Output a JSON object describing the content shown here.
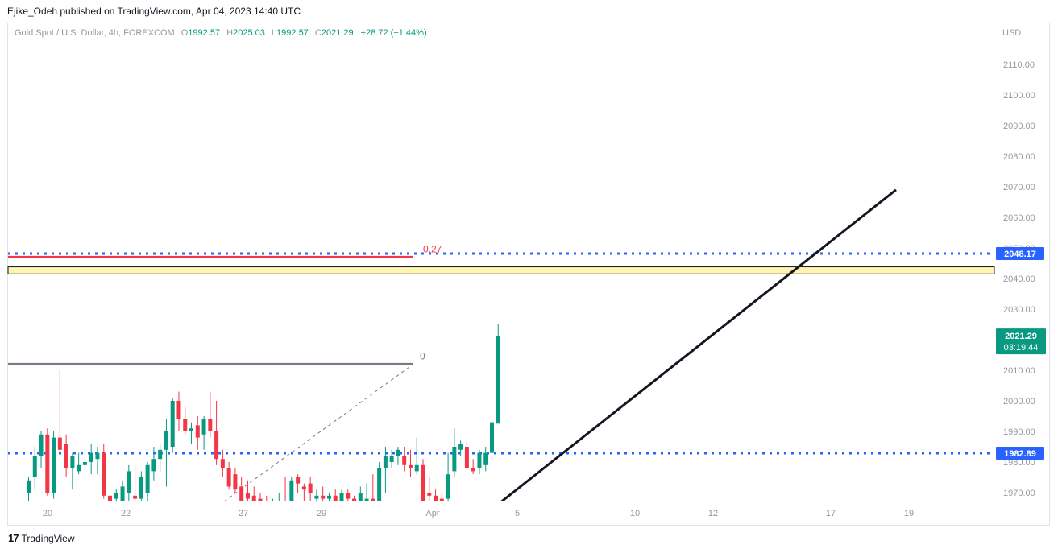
{
  "header": {
    "published_by": "Ejike_Odeh published on TradingView.com, Apr 04, 2023 14:40 UTC"
  },
  "legend": {
    "symbol": "Gold Spot / U.S. Dollar, 4h, FOREXCOM",
    "o_label": "O",
    "o_value": "1992.57",
    "h_label": "H",
    "h_value": "2025.03",
    "l_label": "L",
    "l_value": "1992.57",
    "c_label": "C",
    "c_value": "2021.29",
    "change": "+28.72 (+1.44%)"
  },
  "price_axis": {
    "currency": "USD"
  },
  "footer": {
    "brand": "TradingView",
    "logo_icon": "tradingview-logo-icon"
  },
  "colors": {
    "up": "#089981",
    "down": "#f23645",
    "level_blue": "#2962ff",
    "fib_red": "#f23645",
    "zone_fill": "#fff3b0",
    "trendline": "#131722",
    "badge_green": "#089981"
  },
  "chart_data": {
    "type": "candlestick",
    "title": "Gold Spot / U.S. Dollar, 4h, FOREXCOM",
    "ylabel": "USD",
    "ylim": [
      1967,
      2122
    ],
    "y_ticks": [
      1970,
      1980,
      1990,
      2000,
      2010,
      2020,
      2030,
      2040,
      2050,
      2060,
      2070,
      2080,
      2090,
      2100,
      2110
    ],
    "x_ticks": [
      "20",
      "22",
      "27",
      "29",
      "Apr",
      "5",
      "10",
      "12",
      "17",
      "19"
    ],
    "horizontal_levels": [
      {
        "price": 2048.17,
        "label": "2048.17",
        "style": "dotted",
        "color": "#2962ff"
      },
      {
        "price": 1982.89,
        "label": "1982.89",
        "style": "dotted",
        "color": "#2962ff"
      }
    ],
    "current_price": {
      "price": 2021.29,
      "label": "2021.29",
      "countdown": "03:19:44"
    },
    "fib_levels": [
      {
        "ratio_label": "-0.27",
        "price": 2047
      },
      {
        "ratio_label": "0",
        "price": 2012
      }
    ],
    "zone": {
      "from": 2041.5,
      "to": 2043.8
    },
    "trendline": {
      "from": {
        "x": "Apr 4 (22:00)",
        "y": 1967
      },
      "to": {
        "x": "Apr 18",
        "y": 2069
      }
    },
    "candles": [
      {
        "o": 1970,
        "h": 1975,
        "l": 1967,
        "c": 1974
      },
      {
        "o": 1975,
        "h": 1985,
        "l": 1971,
        "c": 1982
      },
      {
        "o": 1982,
        "h": 1990,
        "l": 1978,
        "c": 1989
      },
      {
        "o": 1989,
        "h": 1991,
        "l": 1969,
        "c": 1970
      },
      {
        "o": 1970,
        "h": 1990,
        "l": 1968,
        "c": 1988
      },
      {
        "o": 1988,
        "h": 2010,
        "l": 1983,
        "c": 1984
      },
      {
        "o": 1986,
        "h": 1989,
        "l": 1975,
        "c": 1978
      },
      {
        "o": 1978,
        "h": 1983,
        "l": 1971,
        "c": 1982
      },
      {
        "o": 1977,
        "h": 1983,
        "l": 1976,
        "c": 1979
      },
      {
        "o": 1979,
        "h": 1985,
        "l": 1977,
        "c": 1980
      },
      {
        "o": 1980,
        "h": 1986,
        "l": 1976,
        "c": 1983
      },
      {
        "o": 1981,
        "h": 1985,
        "l": 1976,
        "c": 1983
      },
      {
        "o": 1983,
        "h": 1986,
        "l": 1968,
        "c": 1969
      },
      {
        "o": 1969,
        "h": 1971,
        "l": 1966,
        "c": 1967
      },
      {
        "o": 1968,
        "h": 1971,
        "l": 1964,
        "c": 1970
      },
      {
        "o": 1967,
        "h": 1974,
        "l": 1965,
        "c": 1972
      },
      {
        "o": 1970,
        "h": 1979,
        "l": 1967,
        "c": 1977
      },
      {
        "o": 1969,
        "h": 1979,
        "l": 1966,
        "c": 1968
      },
      {
        "o": 1968,
        "h": 1977,
        "l": 1965,
        "c": 1975
      },
      {
        "o": 1970,
        "h": 1980,
        "l": 1965,
        "c": 1979
      },
      {
        "o": 1977,
        "h": 1985,
        "l": 1974,
        "c": 1981
      },
      {
        "o": 1981,
        "h": 1986,
        "l": 1977,
        "c": 1984
      },
      {
        "o": 1984,
        "h": 1994,
        "l": 1972,
        "c": 1990
      },
      {
        "o": 1985,
        "h": 2001,
        "l": 1983,
        "c": 2000
      },
      {
        "o": 2000,
        "h": 2003,
        "l": 1990,
        "c": 1994
      },
      {
        "o": 1994,
        "h": 1998,
        "l": 1989,
        "c": 1990
      },
      {
        "o": 1990,
        "h": 1993,
        "l": 1986,
        "c": 1991
      },
      {
        "o": 1992,
        "h": 1995,
        "l": 1984,
        "c": 1988
      },
      {
        "o": 1989,
        "h": 1995,
        "l": 1984,
        "c": 1994
      },
      {
        "o": 1994,
        "h": 2003,
        "l": 1988,
        "c": 1990
      },
      {
        "o": 1990,
        "h": 2000,
        "l": 1979,
        "c": 1981
      },
      {
        "o": 1981,
        "h": 1984,
        "l": 1975,
        "c": 1978
      },
      {
        "o": 1978,
        "h": 1980,
        "l": 1971,
        "c": 1972
      },
      {
        "o": 1976,
        "h": 1978,
        "l": 1970,
        "c": 1971
      },
      {
        "o": 1972,
        "h": 1975,
        "l": 1966,
        "c": 1967
      },
      {
        "o": 1970,
        "h": 1974,
        "l": 1967,
        "c": 1968
      },
      {
        "o": 1969,
        "h": 1972,
        "l": 1965,
        "c": 1966
      },
      {
        "o": 1968,
        "h": 1970,
        "l": 1964,
        "c": 1967
      },
      {
        "o": 1967,
        "h": 1969,
        "l": 1963,
        "c": 1965
      },
      {
        "o": 1965,
        "h": 1968,
        "l": 1962,
        "c": 1966
      },
      {
        "o": 1966,
        "h": 1970,
        "l": 1963,
        "c": 1967
      },
      {
        "o": 1967,
        "h": 1975,
        "l": 1964,
        "c": 1966
      },
      {
        "o": 1966,
        "h": 1975,
        "l": 1962,
        "c": 1974
      },
      {
        "o": 1975,
        "h": 1976,
        "l": 1970,
        "c": 1973
      },
      {
        "o": 1972,
        "h": 1973,
        "l": 1966,
        "c": 1971
      },
      {
        "o": 1973,
        "h": 1975,
        "l": 1965,
        "c": 1970
      },
      {
        "o": 1968,
        "h": 1971,
        "l": 1964,
        "c": 1969
      },
      {
        "o": 1969,
        "h": 1972,
        "l": 1966,
        "c": 1968
      },
      {
        "o": 1968,
        "h": 1970,
        "l": 1964,
        "c": 1969
      },
      {
        "o": 1969,
        "h": 1971,
        "l": 1965,
        "c": 1967
      },
      {
        "o": 1967,
        "h": 1971,
        "l": 1965,
        "c": 1970
      },
      {
        "o": 1970,
        "h": 1971,
        "l": 1966,
        "c": 1968
      },
      {
        "o": 1968,
        "h": 1969,
        "l": 1966,
        "c": 1967
      },
      {
        "o": 1967,
        "h": 1972,
        "l": 1965,
        "c": 1970
      },
      {
        "o": 1966,
        "h": 1973,
        "l": 1964,
        "c": 1968
      },
      {
        "o": 1968,
        "h": 1976,
        "l": 1965,
        "c": 1967
      },
      {
        "o": 1967,
        "h": 1980,
        "l": 1965,
        "c": 1978
      },
      {
        "o": 1978,
        "h": 1985,
        "l": 1970,
        "c": 1982
      },
      {
        "o": 1980,
        "h": 1984,
        "l": 1978,
        "c": 1982
      },
      {
        "o": 1982,
        "h": 1985,
        "l": 1979,
        "c": 1984
      },
      {
        "o": 1982,
        "h": 1985,
        "l": 1977,
        "c": 1979
      },
      {
        "o": 1979,
        "h": 1984,
        "l": 1975,
        "c": 1978
      },
      {
        "o": 1977,
        "h": 1988,
        "l": 1976,
        "c": 1979
      },
      {
        "o": 1979,
        "h": 1981,
        "l": 1965,
        "c": 1966
      },
      {
        "o": 1970,
        "h": 1975,
        "l": 1964,
        "c": 1969
      },
      {
        "o": 1969,
        "h": 1971,
        "l": 1962,
        "c": 1966
      },
      {
        "o": 1968,
        "h": 1970,
        "l": 1963,
        "c": 1967
      },
      {
        "o": 1968,
        "h": 1983,
        "l": 1966,
        "c": 1976
      },
      {
        "o": 1977,
        "h": 1991,
        "l": 1975,
        "c": 1985
      },
      {
        "o": 1984,
        "h": 1987,
        "l": 1982,
        "c": 1986
      },
      {
        "o": 1985,
        "h": 1987,
        "l": 1977,
        "c": 1978
      },
      {
        "o": 1978,
        "h": 1981,
        "l": 1976,
        "c": 1977
      },
      {
        "o": 1978,
        "h": 1984,
        "l": 1976,
        "c": 1983
      },
      {
        "o": 1979,
        "h": 1985,
        "l": 1977,
        "c": 1983
      },
      {
        "o": 1983,
        "h": 1994,
        "l": 1982,
        "c": 1993
      },
      {
        "o": 1992.57,
        "h": 2025.03,
        "l": 1992.57,
        "c": 2021.29
      }
    ]
  }
}
